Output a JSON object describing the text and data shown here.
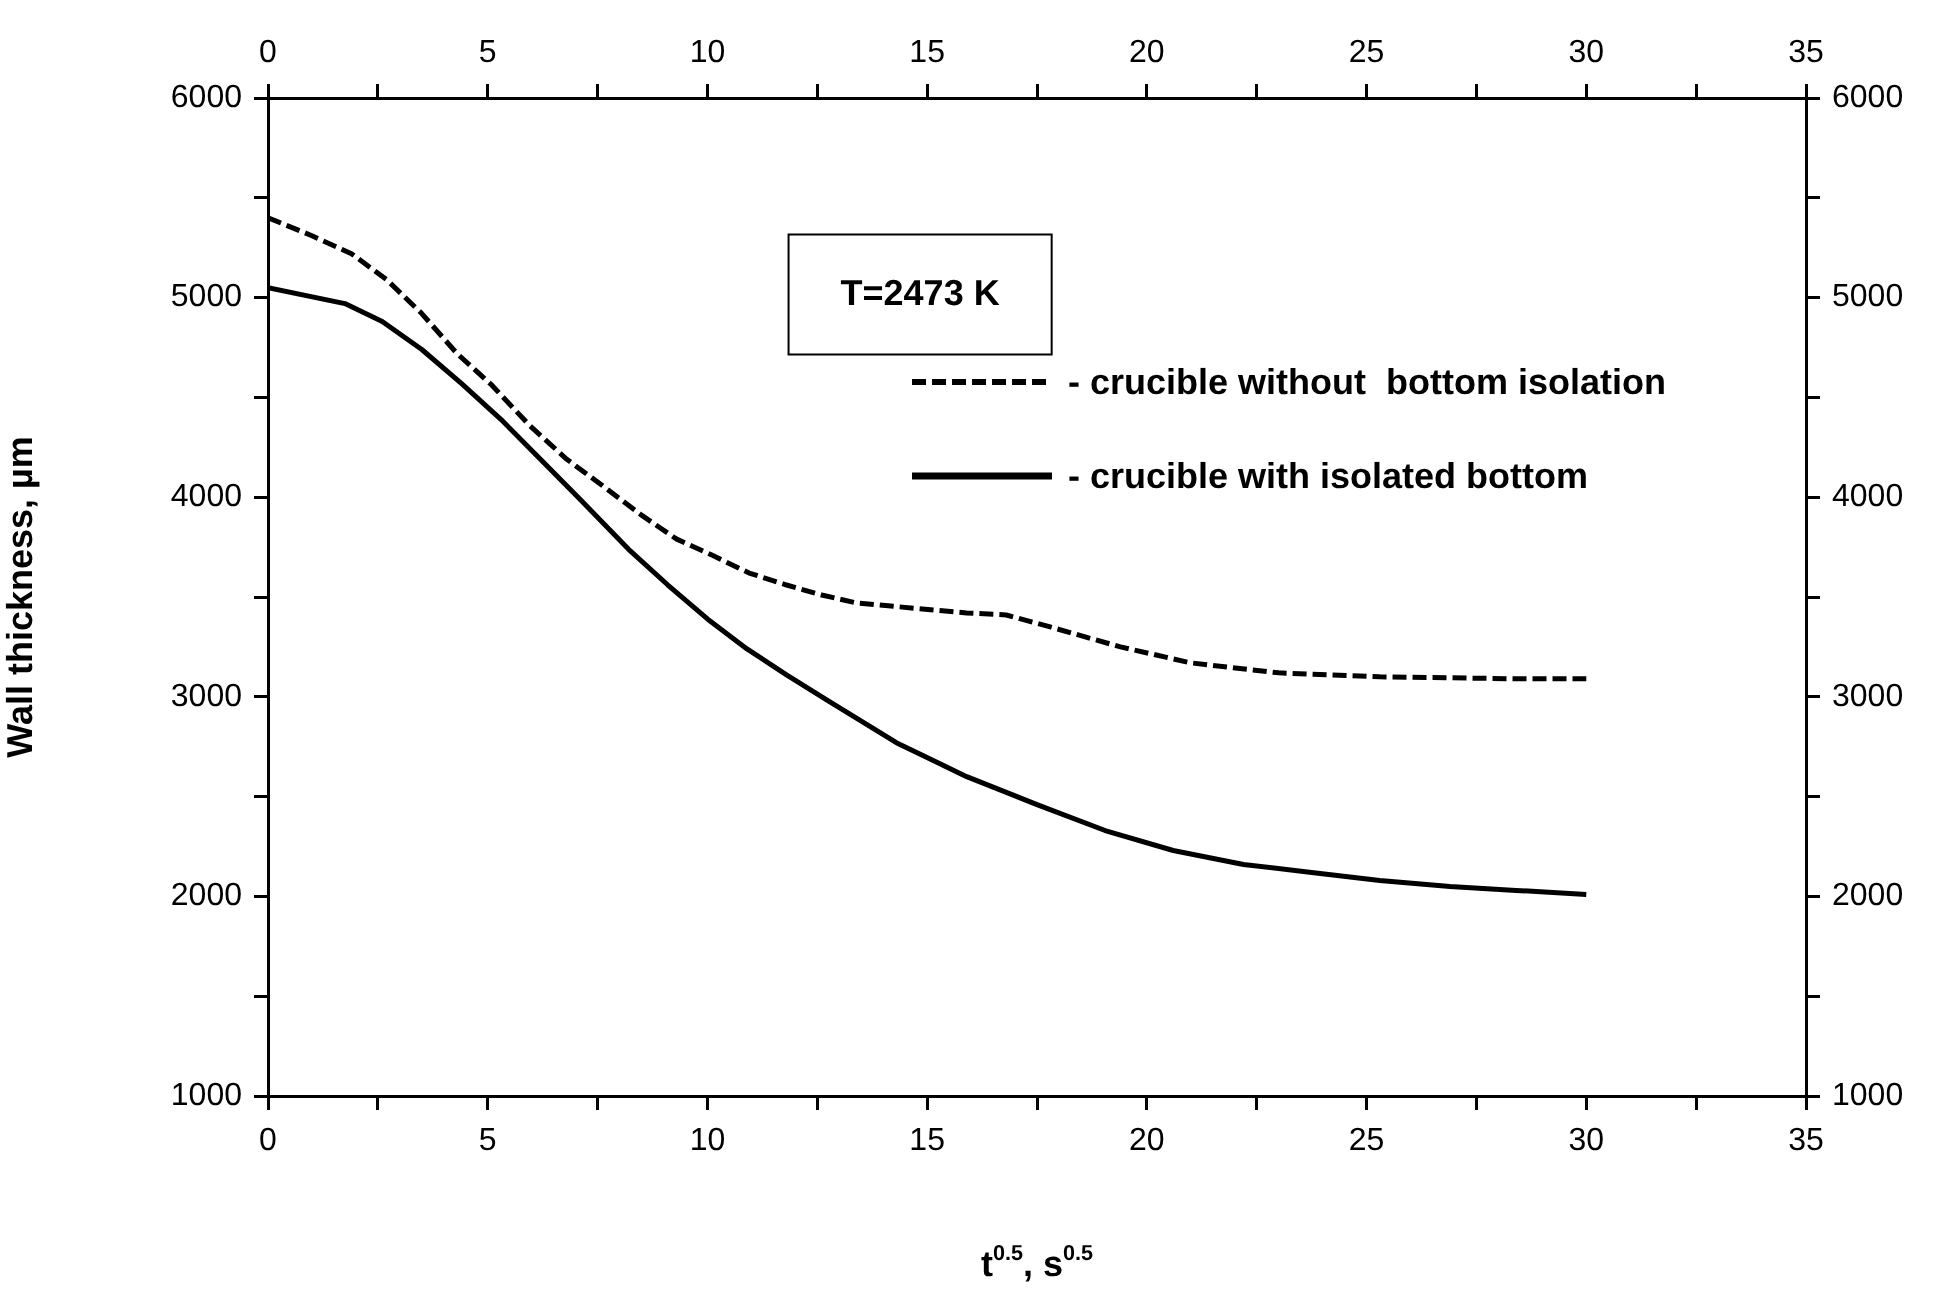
{
  "chart_data": {
    "type": "line",
    "xlabel": "t$^{0.5}$, s$^{0.5}$",
    "ylabel": "Wall thickness, µm",
    "annotations": [
      "T=2473 K"
    ],
    "legend": "top right",
    "grid": false,
    "marker": "none",
    "xlim": [
      0,
      35
    ],
    "xticks": [
      0,
      {
        "value": 2.5,
        "label": null
      },
      5,
      {
        "value": 7.5,
        "label": null
      },
      10,
      {
        "value": 12.5,
        "label": null
      },
      15,
      {
        "value": 17.5,
        "label": null
      },
      20,
      {
        "value": 22.5,
        "label": null
      },
      25,
      {
        "value": 27.5,
        "label": null
      },
      30,
      {
        "value": 32.5,
        "label": null
      },
      35
    ],
    "x2lim": [
      0,
      35
    ],
    "x2ticks": [
      0,
      {
        "value": 2.5,
        "label": null
      },
      5,
      {
        "value": 7.5,
        "label": null
      },
      10,
      {
        "value": 12.5,
        "label": null
      },
      15,
      {
        "value": 17.5,
        "label": null
      },
      20,
      {
        "value": 22.5,
        "label": null
      },
      25,
      {
        "value": 27.5,
        "label": null
      },
      30,
      {
        "value": 32.5,
        "label": null
      },
      35
    ],
    "ylim": [
      1000,
      6000
    ],
    "yticks": [
      1000,
      {
        "value": 1500,
        "label": null
      },
      2000,
      {
        "value": 2500,
        "label": null
      },
      3000,
      {
        "value": 3500,
        "label": null
      },
      4000,
      {
        "value": 4500,
        "label": null
      },
      5000,
      {
        "value": 5500,
        "label": null
      },
      6000
    ],
    "y2lim": [
      1000,
      6000
    ],
    "y2ticks": [
      1000,
      {
        "value": 1500,
        "label": null
      },
      2000,
      {
        "value": 2500,
        "label": null
      },
      3000,
      {
        "value": 3500,
        "label": null
      },
      4000,
      {
        "value": 4500,
        "label": null
      },
      5000,
      {
        "value": 5500,
        "label": null
      },
      6000
    ],
    "series": [
      {
        "name": "- crucible without  bottom isolation",
        "color": "#000000",
        "line_style": "dashed",
        "x": [
          0,
          1,
          1.9,
          2.7,
          3.5,
          4.3,
          5.1,
          5.95,
          6.8,
          7.6,
          8.5,
          9.3,
          10.1,
          10.95,
          11.8,
          12.6,
          13.4,
          15.9,
          16.8,
          17.8,
          19.4,
          21,
          23,
          25.3,
          28.5,
          30
        ],
        "values": [
          5400,
          5310,
          5220,
          5090,
          4920,
          4720,
          4560,
          4360,
          4190,
          4060,
          3910,
          3790,
          3710,
          3620,
          3560,
          3510,
          3470,
          3420,
          3410,
          3350,
          3250,
          3170,
          3120,
          3100,
          3090,
          3090
        ]
      },
      {
        "name": "- crucible with isolated bottom",
        "color": "#000000",
        "line_style": "solid",
        "x": [
          0,
          1.75,
          2.6,
          3.5,
          4.4,
          5.3,
          6.2,
          7.1,
          8.2,
          9.1,
          10,
          10.9,
          11.8,
          12.75,
          14.3,
          15.9,
          17.5,
          19.05,
          20.6,
          22.2,
          23.75,
          25.3,
          26.9,
          28.4,
          30
        ],
        "values": [
          5050,
          4970,
          4880,
          4740,
          4570,
          4390,
          4190,
          3990,
          3740,
          3560,
          3390,
          3240,
          3110,
          2980,
          2770,
          2600,
          2460,
          2330,
          2230,
          2160,
          2120,
          2080,
          2050,
          2030,
          2010
        ]
      }
    ]
  }
}
